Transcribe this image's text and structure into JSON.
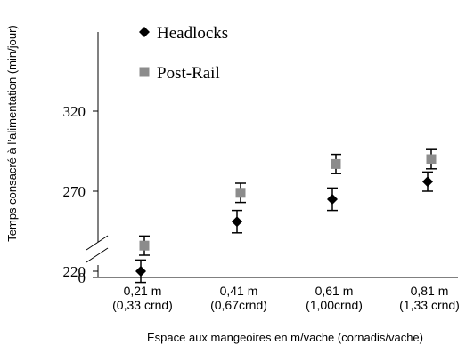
{
  "chart_data": {
    "type": "scatter",
    "categories": [
      [
        "0,21 m",
        "(0,33 crnd)"
      ],
      [
        "0,41 m",
        "(0,67crnd)"
      ],
      [
        "0,61 m",
        "(1,00crnd)"
      ],
      [
        "0,81 m",
        "(1,33 crnd)"
      ]
    ],
    "series": [
      {
        "name": "Headlocks",
        "marker": "diamond",
        "color": "#000000",
        "values": [
          220,
          251,
          265,
          276
        ],
        "error": [
          7,
          7,
          7,
          6
        ]
      },
      {
        "name": "Post-Rail",
        "marker": "square",
        "color": "#8c8c8c",
        "values": [
          236,
          269,
          287,
          290
        ],
        "error": [
          6,
          6,
          6,
          6
        ]
      }
    ],
    "xlabel": "Espace aux mangeoires en m/vache (cornadis/vache)",
    "ylabel": "Temps consacré à l’alimentation (min/jour)",
    "y_ticks": [
      "0",
      "220",
      "270",
      "320"
    ],
    "axis_break": true,
    "grid": false,
    "legend_position": "top-left"
  }
}
